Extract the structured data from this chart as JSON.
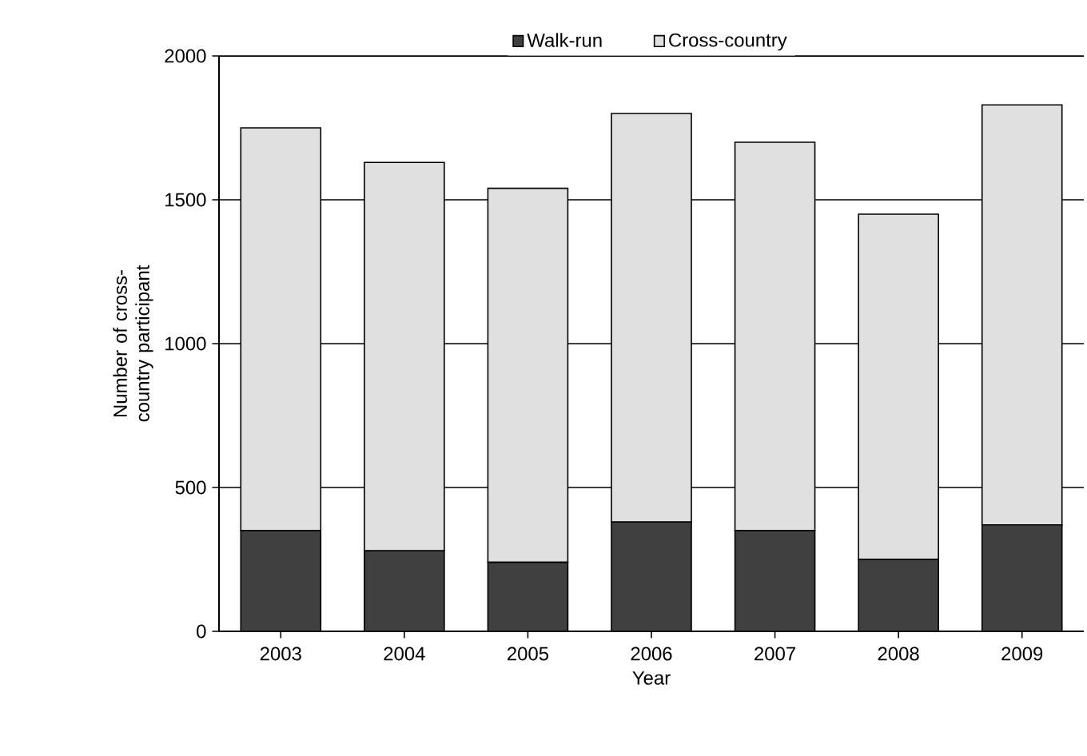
{
  "chart_data": {
    "type": "bar",
    "stacked": true,
    "xlabel": "Year",
    "ylabel": "Number of cross-country participant",
    "categories": [
      "2003",
      "2004",
      "2005",
      "2006",
      "2007",
      "2008",
      "2009"
    ],
    "series": [
      {
        "name": "Walk-run",
        "color": "#404040",
        "values": [
          350,
          280,
          240,
          380,
          350,
          250,
          370
        ]
      },
      {
        "name": "Cross-country",
        "color": "#e0e0e0",
        "values": [
          1400,
          1350,
          1300,
          1420,
          1350,
          1200,
          1460
        ]
      }
    ],
    "ylim": [
      0,
      2000
    ],
    "yticks": [
      0,
      500,
      1000,
      1500,
      2000
    ],
    "grid": "y",
    "legend": "top"
  }
}
